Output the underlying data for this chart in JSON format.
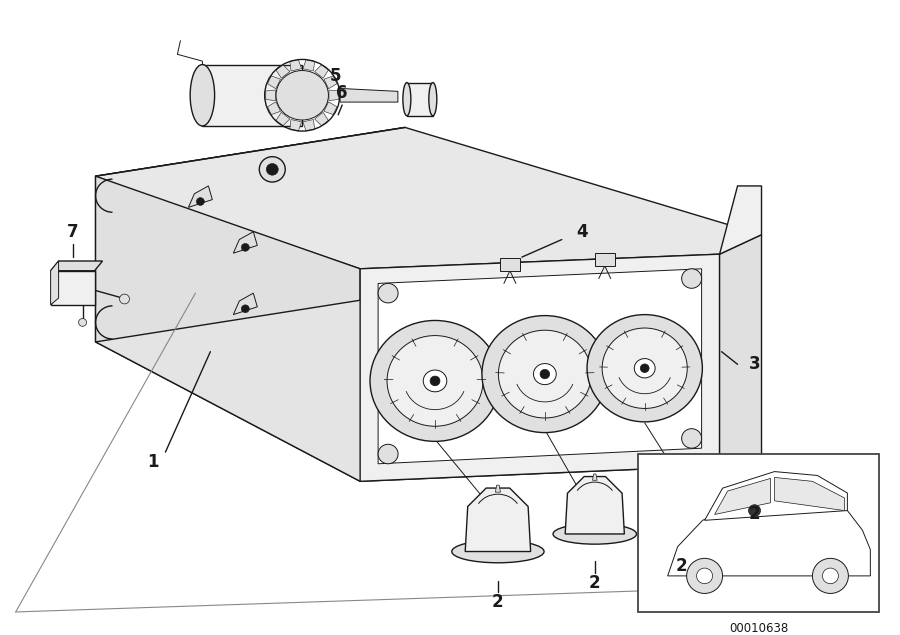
{
  "bg_color": "#ffffff",
  "fig_width": 9.0,
  "fig_height": 6.35,
  "dpi": 100,
  "line_color": "#1a1a1a",
  "diagram_code": "00010638",
  "lw_main": 1.0,
  "lw_thin": 0.7,
  "lw_thick": 1.4,
  "fill_light": "#f0f0f0",
  "fill_medium": "#e0e0e0",
  "fill_dark": "#c8c8c8",
  "fill_white": "#ffffff"
}
